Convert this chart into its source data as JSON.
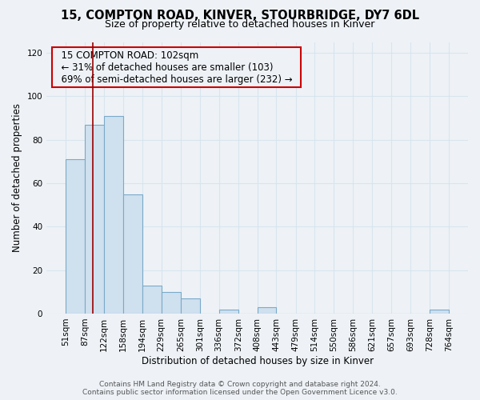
{
  "title1": "15, COMPTON ROAD, KINVER, STOURBRIDGE, DY7 6DL",
  "title2": "Size of property relative to detached houses in Kinver",
  "xlabel": "Distribution of detached houses by size in Kinver",
  "ylabel": "Number of detached properties",
  "bin_edges": [
    51,
    87,
    122,
    158,
    194,
    229,
    265,
    301,
    336,
    372,
    408,
    443,
    479,
    514,
    550,
    586,
    621,
    657,
    693,
    728,
    764
  ],
  "bar_heights": [
    71,
    87,
    91,
    55,
    13,
    10,
    7,
    0,
    2,
    0,
    3,
    0,
    0,
    0,
    0,
    0,
    0,
    0,
    0,
    2
  ],
  "bar_color": "#cfe0ef",
  "bar_edgecolor": "#7aaac8",
  "bar_linewidth": 0.8,
  "grid_color": "#d8e4ee",
  "background_color": "#eef2f7",
  "red_line_x": 102,
  "red_line_color": "#990000",
  "annotation_title": "15 COMPTON ROAD: 102sqm",
  "annotation_line1": "← 31% of detached houses are smaller (103)",
  "annotation_line2": "69% of semi-detached houses are larger (232) →",
  "annotation_box_edgecolor": "#cc0000",
  "ylim": [
    0,
    125
  ],
  "yticks": [
    0,
    20,
    40,
    60,
    80,
    100,
    120
  ],
  "footer1": "Contains HM Land Registry data © Crown copyright and database right 2024.",
  "footer2": "Contains public sector information licensed under the Open Government Licence v3.0.",
  "title1_fontsize": 10.5,
  "title2_fontsize": 9,
  "tick_fontsize": 7.5,
  "axis_label_fontsize": 8.5,
  "annotation_fontsize": 8.5,
  "footer_fontsize": 6.5
}
